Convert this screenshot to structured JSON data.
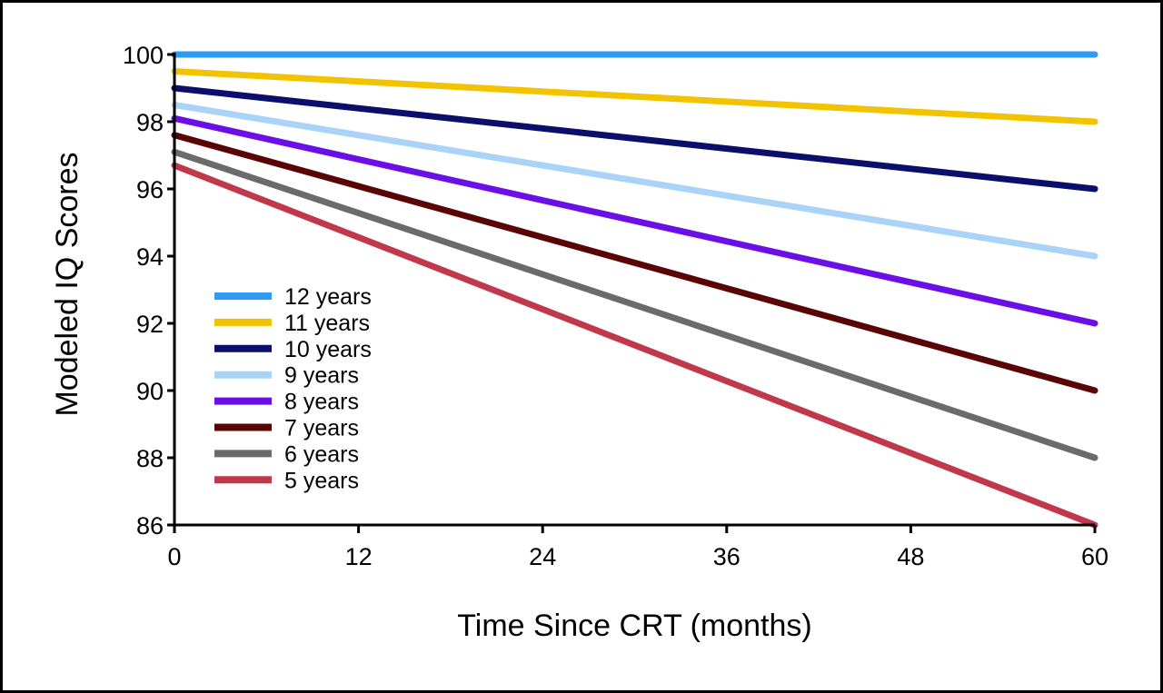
{
  "chart_data": {
    "type": "line",
    "title": "",
    "xlabel": "Time Since CRT (months)",
    "ylabel": "Modeled IQ Scores",
    "xlim": [
      0,
      60
    ],
    "ylim": [
      86,
      100
    ],
    "x_ticks": [
      0,
      12,
      24,
      36,
      48,
      60
    ],
    "y_ticks": [
      86,
      88,
      90,
      92,
      94,
      96,
      98,
      100
    ],
    "grid": false,
    "legend_position": "left",
    "x": [
      0,
      60
    ],
    "series": [
      {
        "name": "12 years",
        "color": "#2E9BF5",
        "values": [
          100.0,
          100.0
        ]
      },
      {
        "name": "11 years",
        "color": "#F2C300",
        "values": [
          99.5,
          98.0
        ]
      },
      {
        "name": "10 years",
        "color": "#0B0F6B",
        "values": [
          99.0,
          96.0
        ]
      },
      {
        "name": "9 years",
        "color": "#A9D4F7",
        "values": [
          98.5,
          94.0
        ]
      },
      {
        "name": "8 years",
        "color": "#6A10E6",
        "values": [
          98.1,
          92.0
        ]
      },
      {
        "name": "7 years",
        "color": "#5A0505",
        "values": [
          97.6,
          90.0
        ]
      },
      {
        "name": "6 years",
        "color": "#6B6B6B",
        "values": [
          97.1,
          88.0
        ]
      },
      {
        "name": "5 years",
        "color": "#C0394A",
        "values": [
          96.7,
          86.0
        ]
      }
    ]
  }
}
